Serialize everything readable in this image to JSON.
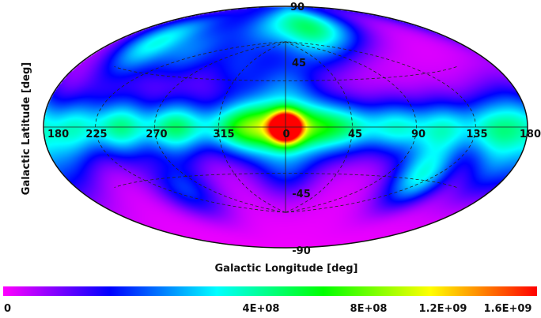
{
  "chart_data": {
    "type": "heatmap",
    "projection": "hammer-aitoff (all-sky)",
    "xlabel": "Galactic Longitude [deg]",
    "ylabel": "Galactic Latitude [deg]",
    "lon_ticks": [
      "180",
      "225",
      "270",
      "315",
      "0",
      "45",
      "90",
      "135",
      "180"
    ],
    "lat_ticks": [
      "90",
      "45",
      "-45",
      "-90"
    ],
    "colorbar": {
      "min": 0,
      "max": 1700000000,
      "ticks": [
        {
          "label": "0",
          "value": 0
        },
        {
          "label": "4E+08",
          "value": 400000000
        },
        {
          "label": "8E+08",
          "value": 800000000
        },
        {
          "label": "1.2E+09",
          "value": 1200000000
        },
        {
          "label": "1.6E+09",
          "value": 1600000000
        }
      ],
      "colormap": [
        "#ff00ff",
        "#8000ff",
        "#0000ff",
        "#0080ff",
        "#00ffff",
        "#00ff80",
        "#00ff00",
        "#80ff00",
        "#ffff00",
        "#ff8000",
        "#ff0000"
      ]
    },
    "hotspots": [
      {
        "lon": 0,
        "lat": 0,
        "value": 1650000000
      },
      {
        "lon": 15,
        "lat": 0,
        "value": 650000000
      },
      {
        "lon": -15,
        "lat": 0,
        "value": 600000000
      },
      {
        "lon": 35,
        "lat": 0,
        "value": 450000000
      },
      {
        "lon": 75,
        "lat": 0,
        "value": 550000000
      },
      {
        "lon": 115,
        "lat": 0,
        "value": 500000000
      },
      {
        "lon": 150,
        "lat": 0,
        "value": 350000000
      },
      {
        "lon": -40,
        "lat": 0,
        "value": 420000000
      },
      {
        "lon": -75,
        "lat": 0,
        "value": 380000000
      },
      {
        "lon": -110,
        "lat": 0,
        "value": 350000000
      },
      {
        "lon": -145,
        "lat": 0,
        "value": 330000000
      },
      {
        "lon": -170,
        "lat": 5,
        "value": 300000000
      },
      {
        "lon": 0,
        "lat": 28,
        "value": 350000000
      },
      {
        "lon": 0,
        "lat": -28,
        "value": 320000000
      },
      {
        "lon": -55,
        "lat": 72,
        "value": 600000000
      },
      {
        "lon": 25,
        "lat": 72,
        "value": 380000000
      },
      {
        "lon": 90,
        "lat": 48,
        "value": 380000000
      },
      {
        "lon": 135,
        "lat": 45,
        "value": 400000000
      },
      {
        "lon": 150,
        "lat": 58,
        "value": 350000000
      },
      {
        "lon": -105,
        "lat": -30,
        "value": 620000000
      },
      {
        "lon": 85,
        "lat": -40,
        "value": 350000000
      },
      {
        "lon": -30,
        "lat": 55,
        "value": 300000000
      },
      {
        "lon": 40,
        "lat": 40,
        "value": 280000000
      },
      {
        "lon": -160,
        "lat": -20,
        "value": 300000000
      },
      {
        "lon": 170,
        "lat": -15,
        "value": 280000000
      }
    ]
  }
}
